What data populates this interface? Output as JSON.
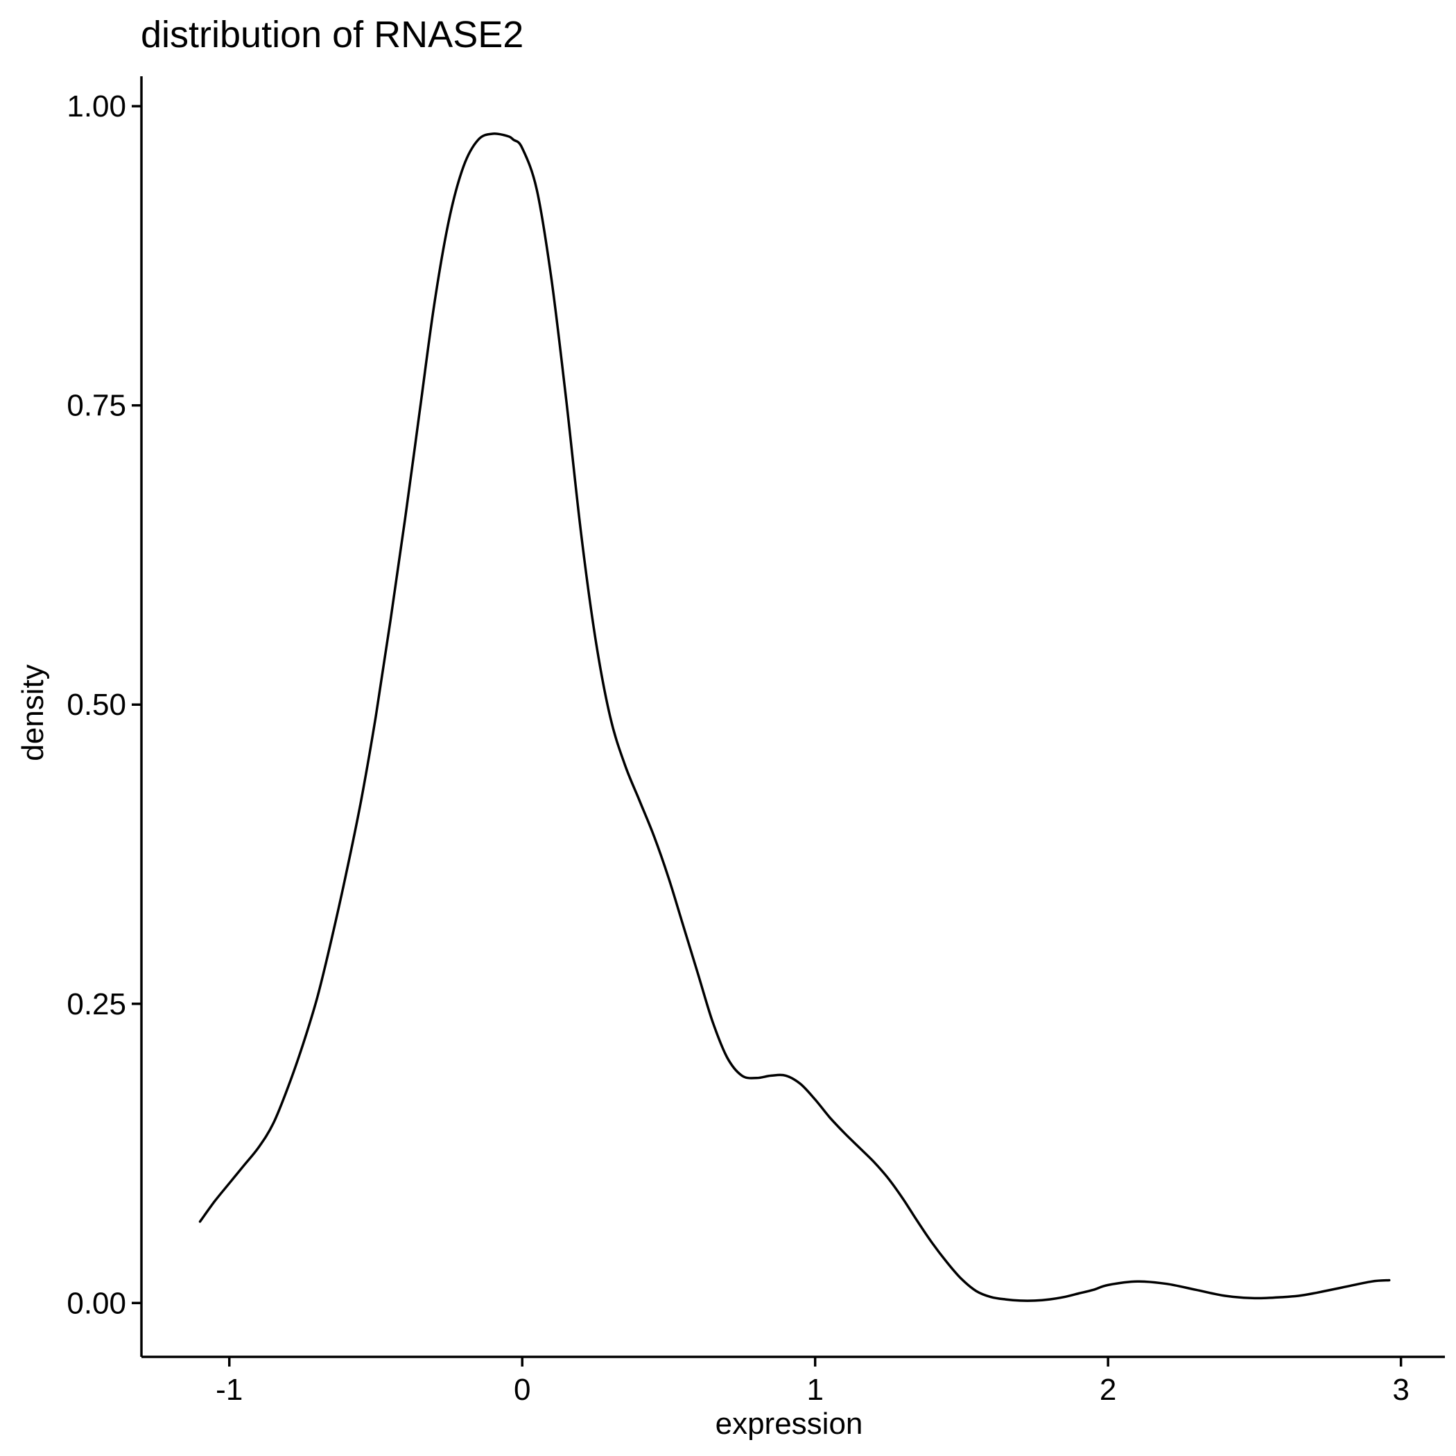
{
  "chart_data": {
    "type": "line",
    "title": "distribution of RNASE2",
    "xlabel": "expression",
    "ylabel": "density",
    "xlim": [
      -1.3,
      3.15
    ],
    "ylim": [
      -0.045,
      1.025
    ],
    "x_ticks": [
      -1,
      0,
      1,
      2,
      3
    ],
    "x_tick_labels": [
      "-1",
      "0",
      "1",
      "2",
      "3"
    ],
    "y_ticks": [
      0,
      0.25,
      0.5,
      0.75,
      1
    ],
    "y_tick_labels": [
      "0.00",
      "0.25",
      "0.50",
      "0.75",
      "1.00"
    ],
    "grid": false,
    "legend": "none",
    "series": [
      {
        "x": [
          -1.1,
          -1.05,
          -1.0,
          -0.95,
          -0.9,
          -0.85,
          -0.8,
          -0.75,
          -0.7,
          -0.65,
          -0.6,
          -0.55,
          -0.5,
          -0.45,
          -0.4,
          -0.35,
          -0.3,
          -0.25,
          -0.2,
          -0.15,
          -0.1,
          -0.05,
          -0.03,
          0.0,
          0.05,
          0.1,
          0.15,
          0.2,
          0.25,
          0.3,
          0.35,
          0.4,
          0.45,
          0.5,
          0.55,
          0.6,
          0.65,
          0.7,
          0.75,
          0.8,
          0.85,
          0.9,
          0.95,
          1.0,
          1.05,
          1.1,
          1.15,
          1.2,
          1.25,
          1.3,
          1.35,
          1.4,
          1.45,
          1.5,
          1.55,
          1.6,
          1.65,
          1.7,
          1.75,
          1.8,
          1.85,
          1.9,
          1.95,
          2.0,
          2.1,
          2.2,
          2.3,
          2.4,
          2.5,
          2.6,
          2.65,
          2.7,
          2.8,
          2.9,
          2.96
        ],
        "y": [
          0.068,
          0.085,
          0.1,
          0.115,
          0.13,
          0.15,
          0.18,
          0.215,
          0.255,
          0.305,
          0.36,
          0.42,
          0.49,
          0.57,
          0.655,
          0.745,
          0.835,
          0.905,
          0.95,
          0.972,
          0.977,
          0.975,
          0.972,
          0.965,
          0.93,
          0.855,
          0.755,
          0.645,
          0.555,
          0.49,
          0.45,
          0.42,
          0.39,
          0.355,
          0.315,
          0.275,
          0.235,
          0.205,
          0.19,
          0.188,
          0.19,
          0.19,
          0.183,
          0.17,
          0.155,
          0.142,
          0.13,
          0.118,
          0.104,
          0.087,
          0.068,
          0.05,
          0.034,
          0.02,
          0.01,
          0.005,
          0.003,
          0.002,
          0.002,
          0.003,
          0.005,
          0.008,
          0.011,
          0.015,
          0.018,
          0.016,
          0.011,
          0.006,
          0.004,
          0.005,
          0.006,
          0.008,
          0.013,
          0.018,
          0.019
        ]
      }
    ]
  }
}
